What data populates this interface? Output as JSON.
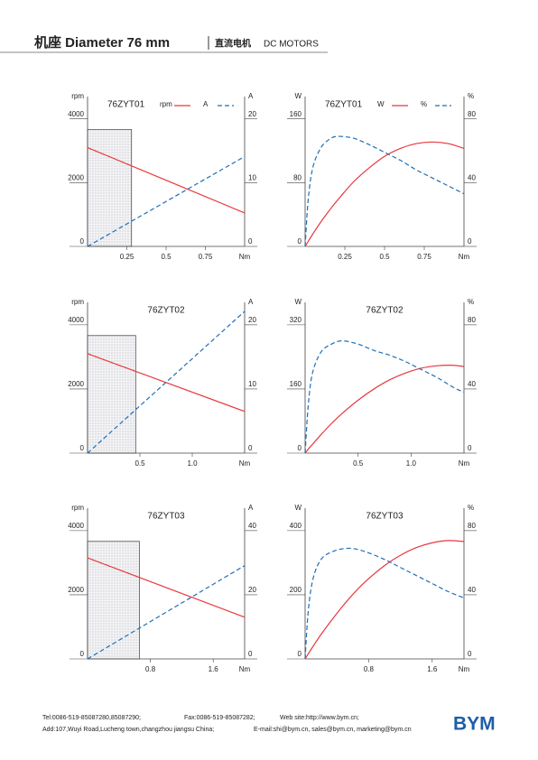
{
  "header": {
    "title": "机座 Diameter 76 mm",
    "subtitle_cn": "直流电机",
    "subtitle_en": "DC MOTORS"
  },
  "chart_data": [
    {
      "type": "line",
      "title": "76ZYT01",
      "legend": true,
      "ylabel": "rpm",
      "y2label": "A",
      "xlabel": "Nm",
      "x": [
        0,
        1.0
      ],
      "xlim": [
        0,
        1.0
      ],
      "xticks": [
        0.25,
        0.5,
        0.75
      ],
      "ylim": [
        0,
        4700
      ],
      "yticks": [
        0,
        2000,
        4000
      ],
      "y2lim": [
        0,
        23.5
      ],
      "y2ticks": [
        0,
        10,
        20
      ],
      "shade_to": 0.28,
      "series": [
        {
          "name": "rpm",
          "color": "#e8383d",
          "style": "solid",
          "values": [
            3100,
            1050
          ]
        },
        {
          "name": "A",
          "color": "#1f6fb8",
          "style": "dashed",
          "axis": "y2",
          "values": [
            0,
            14.1
          ]
        }
      ]
    },
    {
      "type": "line",
      "title": "76ZYT01",
      "legend": true,
      "ylabel": "W",
      "y2label": "%",
      "xlabel": "Nm",
      "x": [
        0,
        0.02,
        0.05,
        0.1,
        0.15,
        0.2,
        0.3,
        0.4,
        0.5,
        0.6,
        0.7,
        0.8,
        0.9,
        1.0
      ],
      "xlim": [
        0,
        1.0
      ],
      "xticks": [
        0.25,
        0.5,
        0.75
      ],
      "ylim": [
        0,
        188
      ],
      "yticks": [
        0,
        80,
        160
      ],
      "y2lim": [
        0,
        94
      ],
      "y2ticks": [
        0,
        40,
        80
      ],
      "series": [
        {
          "name": "W",
          "color": "#e8383d",
          "style": "solid",
          "values": [
            0,
            6.5,
            16,
            31,
            44.5,
            57,
            80,
            98,
            113,
            123,
            129,
            131,
            129,
            123
          ]
        },
        {
          "name": "%",
          "color": "#1f6fb8",
          "style": "dashed",
          "axis": "y2",
          "values": [
            0,
            30,
            50,
            62,
            67,
            69,
            68,
            64,
            59,
            54,
            48,
            43,
            38,
            33
          ]
        }
      ]
    },
    {
      "type": "line",
      "title": "76ZYT02",
      "legend": false,
      "ylabel": "rpm",
      "y2label": "A",
      "xlabel": "Nm",
      "x": [
        0,
        1.5
      ],
      "xlim": [
        0,
        1.5
      ],
      "xticks": [
        0.5,
        {
          "value": 1,
          "label": "1.0"
        }
      ],
      "ylim": [
        0,
        4700
      ],
      "yticks": [
        0,
        2000,
        4000
      ],
      "y2lim": [
        0,
        23.5
      ],
      "y2ticks": [
        0,
        10,
        20
      ],
      "shade_to": 0.46,
      "series": [
        {
          "name": "rpm",
          "color": "#e8383d",
          "style": "solid",
          "values": [
            3100,
            1300
          ]
        },
        {
          "name": "A",
          "color": "#1f6fb8",
          "style": "dashed",
          "axis": "y2",
          "values": [
            0,
            22.1
          ]
        }
      ]
    },
    {
      "type": "line",
      "title": "76ZYT02",
      "legend": false,
      "ylabel": "W",
      "y2label": "%",
      "xlabel": "Nm",
      "x": [
        0,
        0.03,
        0.07,
        0.15,
        0.25,
        0.35,
        0.5,
        0.65,
        0.8,
        0.95,
        1.1,
        1.25,
        1.4,
        1.5
      ],
      "xlim": [
        0,
        1.5
      ],
      "xticks": [
        0.5,
        {
          "value": 1,
          "label": "1.0"
        }
      ],
      "ylim": [
        0,
        376
      ],
      "yticks": [
        0,
        160,
        320
      ],
      "y2lim": [
        0,
        94
      ],
      "y2ticks": [
        0,
        40,
        80
      ],
      "series": [
        {
          "name": "W",
          "color": "#e8383d",
          "style": "solid",
          "values": [
            0,
            10,
            22,
            46,
            74,
            99,
            132,
            160,
            183,
            200,
            212,
            218,
            219,
            216
          ]
        },
        {
          "name": "%",
          "color": "#1f6fb8",
          "style": "dashed",
          "axis": "y2",
          "values": [
            0,
            30,
            50,
            63,
            68,
            70,
            68,
            64,
            61,
            57,
            52,
            47,
            41,
            38
          ]
        }
      ]
    },
    {
      "type": "line",
      "title": "76ZYT03",
      "legend": false,
      "ylabel": "rpm",
      "y2label": "A",
      "xlabel": "Nm",
      "x": [
        0,
        2.0
      ],
      "xlim": [
        0,
        2.0
      ],
      "xticks": [
        0.8,
        1.6
      ],
      "ylim": [
        0,
        4700
      ],
      "yticks": [
        0,
        2000,
        4000
      ],
      "y2lim": [
        0,
        47
      ],
      "y2ticks": [
        0,
        20,
        40
      ],
      "shade_to": 0.66,
      "series": [
        {
          "name": "rpm",
          "color": "#e8383d",
          "style": "solid",
          "values": [
            3150,
            1300
          ]
        },
        {
          "name": "A",
          "color": "#1f6fb8",
          "style": "dashed",
          "axis": "y2",
          "values": [
            0,
            29.1
          ]
        }
      ]
    },
    {
      "type": "line",
      "title": "76ZYT03",
      "legend": false,
      "ylabel": "W",
      "y2label": "%",
      "xlabel": "Nm",
      "x": [
        0,
        0.04,
        0.1,
        0.2,
        0.35,
        0.55,
        0.75,
        1.0,
        1.2,
        1.4,
        1.6,
        1.8,
        2.0
      ],
      "xlim": [
        0,
        2.0
      ],
      "xticks": [
        0.8,
        1.6
      ],
      "ylim": [
        0,
        470
      ],
      "yticks": [
        0,
        200,
        400
      ],
      "y2lim": [
        0,
        94
      ],
      "y2ticks": [
        0,
        40,
        80
      ],
      "series": [
        {
          "name": "W",
          "color": "#e8383d",
          "style": "solid",
          "values": [
            0,
            16,
            39,
            76,
            126,
            187,
            239,
            291,
            323,
            347,
            362,
            369,
            366
          ]
        },
        {
          "name": "%",
          "color": "#1f6fb8",
          "style": "dashed",
          "axis": "y2",
          "values": [
            0,
            30,
            50,
            62,
            67,
            69,
            67,
            62,
            57,
            52,
            47,
            42,
            38
          ]
        }
      ]
    }
  ],
  "footer": {
    "tel": "Tel:0086-519-85087280,85087290;",
    "fax": "Fax:0086-519-85087282;",
    "web": "Web site:http://www.bym.cn;",
    "address": "Add:107,Wuyi Road,Lucheng town,changzhou jiangsu China;",
    "email": "E-mail:shi@bym.cn, sales@bym.cn, marketing@bym.cn",
    "logo": "BYM"
  }
}
